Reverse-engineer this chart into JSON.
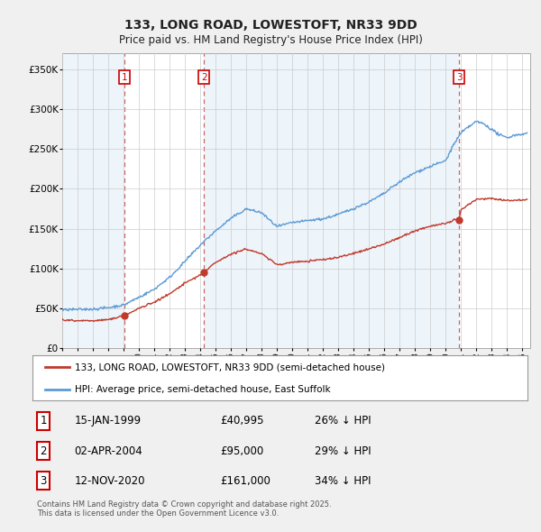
{
  "title": "133, LONG ROAD, LOWESTOFT, NR33 9DD",
  "subtitle": "Price paid vs. HM Land Registry's House Price Index (HPI)",
  "ylabel_ticks": [
    "£0",
    "£50K",
    "£100K",
    "£150K",
    "£200K",
    "£250K",
    "£300K",
    "£350K"
  ],
  "ylim": [
    0,
    370000
  ],
  "xlim_start": 1995.0,
  "xlim_end": 2025.5,
  "sales": [
    {
      "num": 1,
      "date_x": 1999.04,
      "price": 40995,
      "label": "15-JAN-1999",
      "price_label": "£40,995",
      "hpi_label": "26% ↓ HPI"
    },
    {
      "num": 2,
      "date_x": 2004.25,
      "price": 95000,
      "label": "02-APR-2004",
      "price_label": "£95,000",
      "hpi_label": "29% ↓ HPI"
    },
    {
      "num": 3,
      "date_x": 2020.87,
      "price": 161000,
      "label": "12-NOV-2020",
      "price_label": "£161,000",
      "hpi_label": "34% ↓ HPI"
    }
  ],
  "hpi_line_color": "#5b9bd5",
  "price_line_color": "#c0392b",
  "vline_color": "#e8a0a0",
  "shade_color": "#dceaf7",
  "grid_color": "#cccccc",
  "legend_label_price": "133, LONG ROAD, LOWESTOFT, NR33 9DD (semi-detached house)",
  "legend_label_hpi": "HPI: Average price, semi-detached house, East Suffolk",
  "footnote": "Contains HM Land Registry data © Crown copyright and database right 2025.\nThis data is licensed under the Open Government Licence v3.0.",
  "bg_color": "#f0f0f0",
  "plot_bg_color": "#ffffff"
}
